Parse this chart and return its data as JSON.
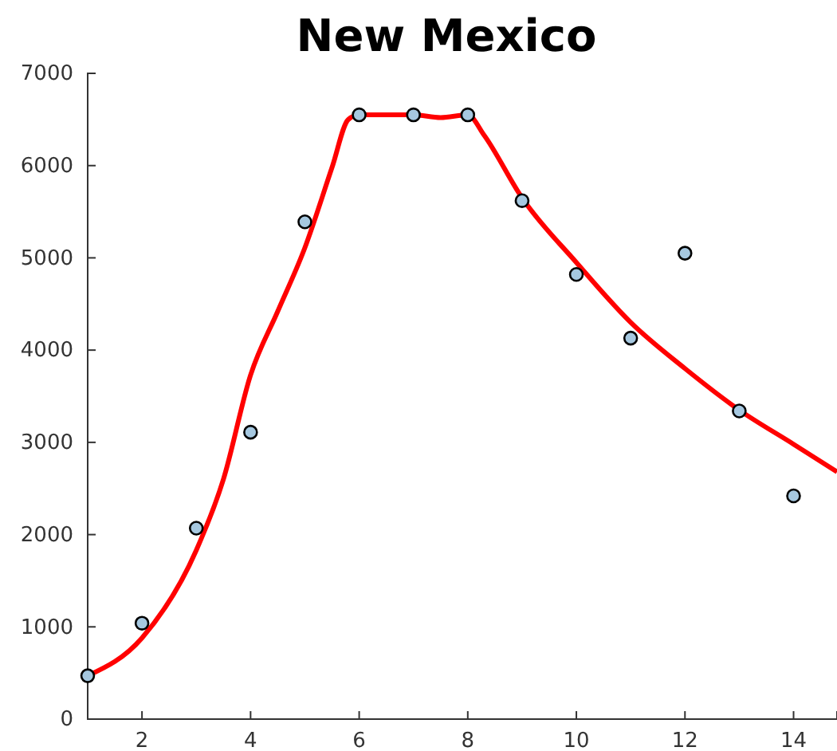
{
  "chart_data": {
    "type": "scatter",
    "title": "New Mexico",
    "xlim": [
      1,
      14.8
    ],
    "xticks": [
      2,
      4,
      6,
      8,
      10,
      12,
      14
    ],
    "ylim": [
      0,
      7000
    ],
    "yticks": [
      0,
      1000,
      2000,
      3000,
      4000,
      5000,
      6000,
      7000
    ],
    "grid": false,
    "series": [
      {
        "type": "line",
        "color": "#ff0000",
        "x": [
          1,
          2,
          3,
          3.5,
          4,
          4.5,
          5,
          5.5,
          5.8,
          6,
          7,
          7.5,
          8,
          8.3,
          9,
          10,
          11,
          12,
          13,
          14,
          14.8
        ],
        "values": [
          470,
          880,
          1830,
          2600,
          3730,
          4420,
          5110,
          5980,
          6500,
          6550,
          6550,
          6520,
          6550,
          6330,
          5650,
          4950,
          4300,
          3800,
          3350,
          2980,
          2680
        ]
      },
      {
        "marker": "circle",
        "color": "#a6c8e0",
        "x": [
          1,
          2,
          3,
          4,
          5,
          6,
          7,
          8,
          9,
          10,
          11,
          12,
          13,
          14
        ],
        "values": [
          470,
          1040,
          2070,
          3110,
          5390,
          6550,
          6550,
          6550,
          5620,
          4820,
          4130,
          5050,
          3340,
          2420
        ]
      }
    ]
  }
}
